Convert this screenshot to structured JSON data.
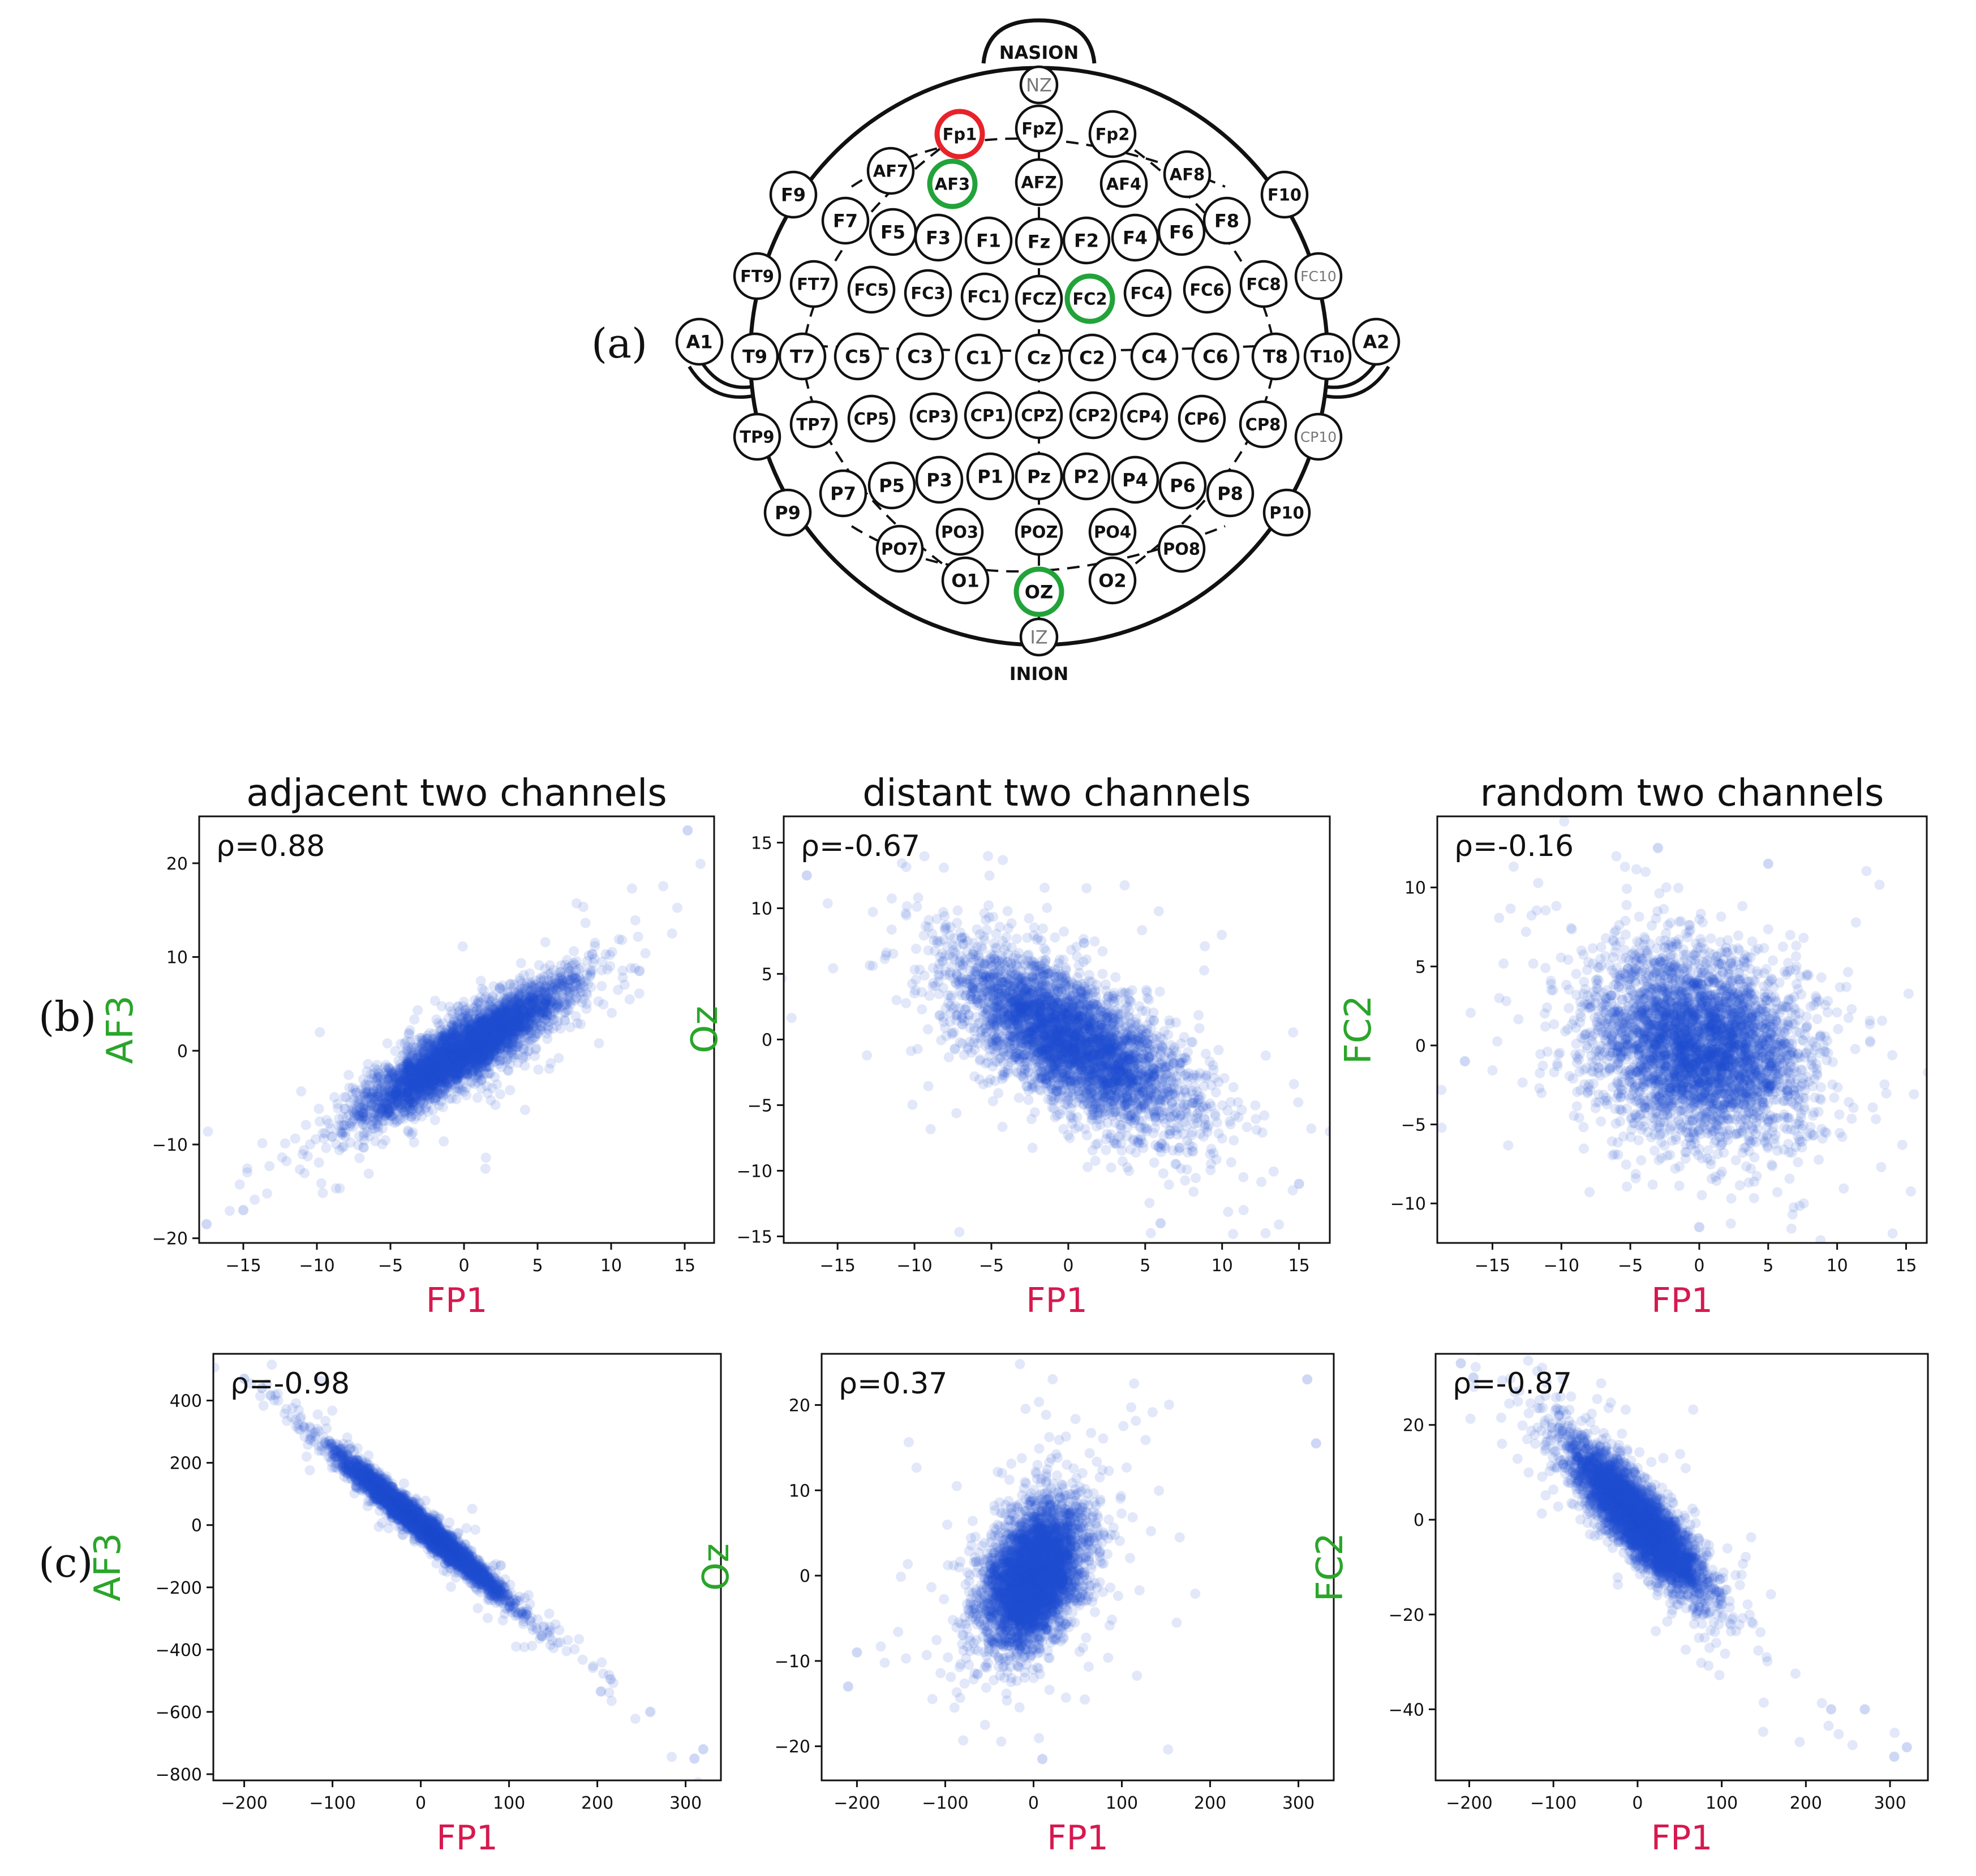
{
  "figure": {
    "panel_labels": {
      "a": "(a)",
      "b": "(b)",
      "c": "(c)"
    }
  },
  "eeg_map": {
    "landmarks": {
      "top": "NASION",
      "bottom": "INION"
    },
    "electrodes": [
      "NZ",
      "Fp1",
      "FpZ",
      "Fp2",
      "AF7",
      "AF3",
      "AFZ",
      "AF4",
      "AF8",
      "F9",
      "F7",
      "F5",
      "F3",
      "F1",
      "Fz",
      "F2",
      "F4",
      "F6",
      "F8",
      "F10",
      "FT9",
      "FT7",
      "FC5",
      "FC3",
      "FC1",
      "FCZ",
      "FC2",
      "FC4",
      "FC6",
      "FC8",
      "FC10",
      "A1",
      "T9",
      "T7",
      "C5",
      "C3",
      "C1",
      "Cz",
      "C2",
      "C4",
      "C6",
      "T8",
      "T10",
      "A2",
      "TP9",
      "TP7",
      "CP5",
      "CP3",
      "CP1",
      "CPZ",
      "CP2",
      "CP4",
      "CP6",
      "CP8",
      "CP10",
      "P9",
      "P7",
      "P5",
      "P3",
      "P1",
      "Pz",
      "P2",
      "P4",
      "P6",
      "P8",
      "P10",
      "PO7",
      "PO3",
      "POZ",
      "PO4",
      "PO8",
      "O1",
      "OZ",
      "O2",
      "IZ"
    ],
    "highlighted": [
      {
        "electrode": "Fp1",
        "color": "#e8222a"
      },
      {
        "electrode": "AF3",
        "color": "#22a33a"
      },
      {
        "electrode": "FC2",
        "color": "#22a33a"
      },
      {
        "electrode": "OZ",
        "color": "#22a33a"
      }
    ]
  },
  "colors": {
    "x_label": "#d6194f",
    "y_label": "#2aa52a",
    "points": "#1f4fd1"
  },
  "chart_data": [
    {
      "id": "b1",
      "type": "scatter",
      "row": "b",
      "title": "adjacent two channels",
      "annotation": "ρ=0.88",
      "rho": 0.88,
      "xlabel": "FP1",
      "ylabel": "AF3",
      "xlim": [
        -18,
        17
      ],
      "ylim": [
        -20.5,
        25
      ],
      "xticks": [
        -15,
        -10,
        -5,
        0,
        5,
        10,
        15
      ],
      "yticks": [
        -20,
        -10,
        0,
        10,
        20
      ],
      "n_points": 4000,
      "mean": [
        0,
        0
      ],
      "sd": [
        3.4,
        3.6
      ],
      "outliers": [
        [
          15.2,
          23.5
        ],
        [
          -17.5,
          -18.5
        ],
        [
          -15,
          -17
        ]
      ]
    },
    {
      "id": "b2",
      "type": "scatter",
      "row": "b",
      "title": "distant two channels",
      "annotation": "ρ=-0.67",
      "rho": -0.67,
      "xlabel": "FP1",
      "ylabel": "Oz",
      "xlim": [
        -18.5,
        17
      ],
      "ylim": [
        -15.5,
        17
      ],
      "xticks": [
        -15,
        -10,
        -5,
        0,
        5,
        10,
        15
      ],
      "yticks": [
        -15,
        -10,
        -5,
        0,
        5,
        10,
        15
      ],
      "n_points": 4000,
      "mean": [
        0,
        0
      ],
      "sd": [
        3.6,
        3.2
      ],
      "outliers": [
        [
          -17,
          12.5
        ],
        [
          6,
          -14
        ],
        [
          15,
          -11
        ]
      ]
    },
    {
      "id": "b3",
      "type": "scatter",
      "row": "b",
      "title": "random two channels",
      "annotation": "ρ=-0.16",
      "rho": -0.16,
      "xlabel": "FP1",
      "ylabel": "FC2",
      "xlim": [
        -19,
        16.5
      ],
      "ylim": [
        -12.5,
        14.5
      ],
      "xticks": [
        -15,
        -10,
        -5,
        0,
        5,
        10,
        15
      ],
      "yticks": [
        -10,
        -5,
        0,
        5,
        10
      ],
      "n_points": 4000,
      "mean": [
        0,
        0
      ],
      "sd": [
        3.8,
        2.9
      ],
      "outliers": [
        [
          -3,
          12.5
        ],
        [
          5,
          11.5
        ],
        [
          -17,
          -1
        ],
        [
          0,
          -11.5
        ]
      ]
    },
    {
      "id": "c1",
      "type": "scatter",
      "row": "c",
      "title": "",
      "annotation": "ρ=-0.98",
      "rho": -0.98,
      "xlabel": "FP1",
      "ylabel": "AF3",
      "xlim": [
        -235,
        340
      ],
      "ylim": [
        -820,
        550
      ],
      "xticks": [
        -200,
        -100,
        0,
        100,
        200,
        300
      ],
      "yticks": [
        -800,
        -600,
        -400,
        -200,
        0,
        200,
        400
      ],
      "n_points": 4000,
      "mean": [
        0,
        0
      ],
      "sd": [
        45,
        110
      ],
      "outliers": [
        [
          -200,
          470
        ],
        [
          -180,
          440
        ],
        [
          310,
          -750
        ],
        [
          320,
          -720
        ],
        [
          260,
          -600
        ],
        [
          215,
          -495
        ]
      ]
    },
    {
      "id": "c2",
      "type": "scatter",
      "row": "c",
      "title": "",
      "annotation": "ρ=0.37",
      "rho": 0.37,
      "xlabel": "FP1",
      "ylabel": "Oz",
      "xlim": [
        -240,
        340
      ],
      "ylim": [
        -24,
        26
      ],
      "xticks": [
        -200,
        -100,
        0,
        100,
        200,
        300
      ],
      "yticks": [
        -20,
        -10,
        0,
        10,
        20
      ],
      "n_points": 4000,
      "mean": [
        0,
        0
      ],
      "sd": [
        28,
        4.2
      ],
      "outliers": [
        [
          310,
          23
        ],
        [
          320,
          15.5
        ],
        [
          -200,
          -9
        ],
        [
          10,
          -21.5
        ],
        [
          -210,
          -13
        ]
      ]
    },
    {
      "id": "c3",
      "type": "scatter",
      "row": "c",
      "title": "",
      "annotation": "ρ=-0.87",
      "rho": -0.87,
      "xlabel": "FP1",
      "ylabel": "FC2",
      "xlim": [
        -240,
        345
      ],
      "ylim": [
        -55,
        35
      ],
      "xticks": [
        -200,
        -100,
        0,
        100,
        200,
        300
      ],
      "yticks": [
        -40,
        -20,
        0,
        20
      ],
      "n_points": 4000,
      "mean": [
        0,
        0
      ],
      "sd": [
        40,
        8
      ],
      "outliers": [
        [
          -210,
          33
        ],
        [
          -195,
          30
        ],
        [
          320,
          -48
        ],
        [
          305,
          -50
        ],
        [
          230,
          -40
        ],
        [
          270,
          -40
        ]
      ]
    }
  ]
}
